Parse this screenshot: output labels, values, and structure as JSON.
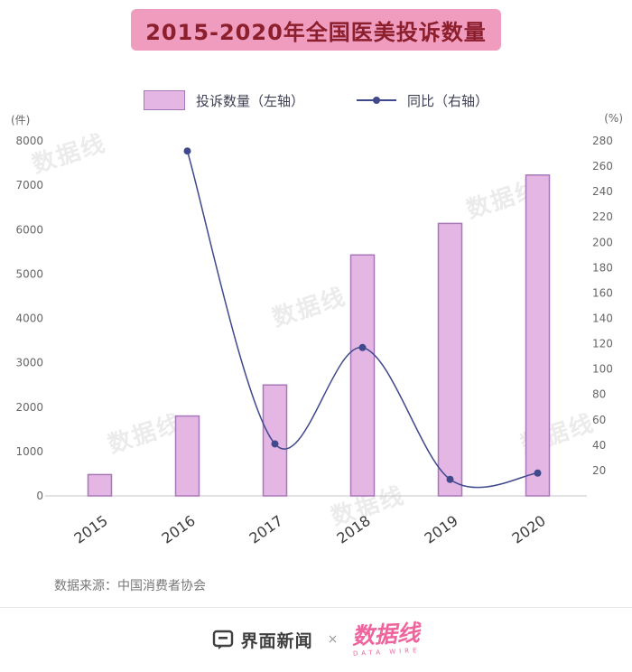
{
  "title": "2015-2020年全国医美投诉数量",
  "legend": {
    "bars": "投诉数量（左轴）",
    "line": "同比（右轴）"
  },
  "left_axis_unit": "(件)",
  "right_axis_unit": "(%)",
  "source": "数据来源：中国消费者协会",
  "watermark": "数据线",
  "footer": {
    "jiemian": "界面新闻",
    "cross": "×",
    "datawire": "数据线",
    "datawire_sub": "DATA WIRE"
  },
  "colors": {
    "banner_bg": "#ef9cbe",
    "banner_text": "#8c1f2e",
    "bar_fill": "#e4b6e4",
    "bar_border": "#a877b8",
    "line": "#41498d",
    "axis_text": "#666666",
    "source_text": "#777777",
    "footer_text": "#3f3f3f",
    "datawire_pink": "#f0649e",
    "divider": "#e6e6e6"
  },
  "chart_data": {
    "type": "bar+line combo",
    "title": "2015-2020年全国医美投诉数量",
    "categories": [
      "2015",
      "2016",
      "2017",
      "2018",
      "2019",
      "2020"
    ],
    "series": [
      {
        "name": "投诉数量（左轴）",
        "type": "bar",
        "axis": "left",
        "unit": "件",
        "values": [
          480,
          1800,
          2500,
          5430,
          6140,
          7230
        ]
      },
      {
        "name": "同比（右轴）",
        "type": "line",
        "axis": "right",
        "unit": "%",
        "values": [
          null,
          272,
          41,
          117,
          13,
          18
        ]
      }
    ],
    "left_axis": {
      "min": 0,
      "max": 8000,
      "step": 1000,
      "unit": "件"
    },
    "right_axis": {
      "min": 0,
      "max": 280,
      "step": 20,
      "unit": "%"
    },
    "grid": false,
    "legend_position": "top"
  }
}
